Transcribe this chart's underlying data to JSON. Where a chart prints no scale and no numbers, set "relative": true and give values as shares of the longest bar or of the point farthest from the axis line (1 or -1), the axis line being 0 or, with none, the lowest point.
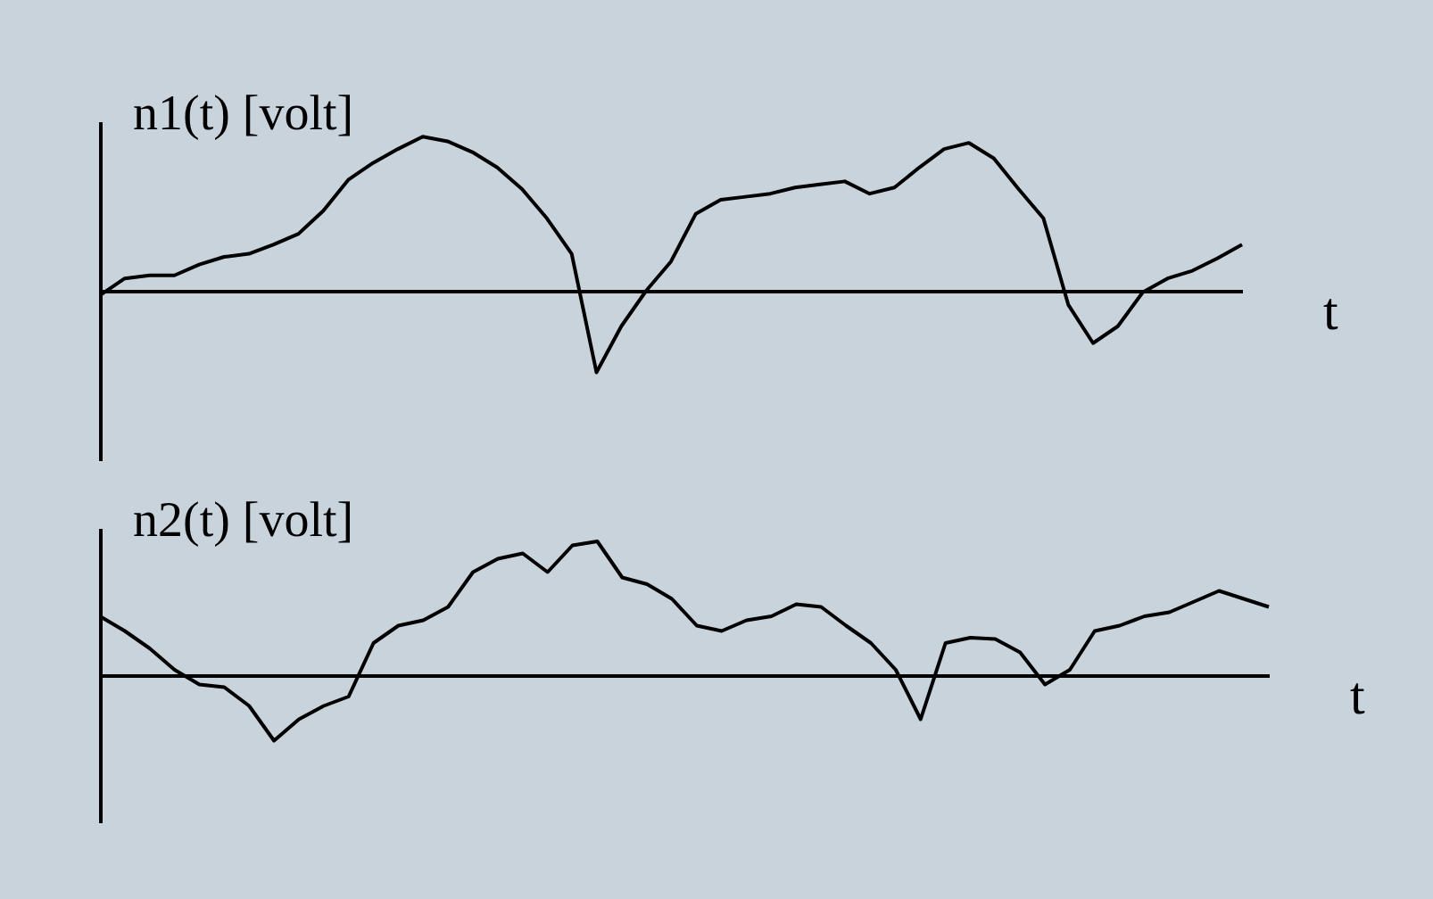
{
  "chart_data": [
    {
      "type": "line",
      "relative": true,
      "ylabel": "n1(t) [volt]",
      "xlabel": "t",
      "color": "#000000",
      "categories": [
        null,
        null,
        null,
        null,
        null,
        null,
        null,
        null,
        null,
        null,
        null,
        null,
        null,
        null,
        null,
        null,
        null,
        null,
        null,
        null,
        null,
        null,
        null,
        null,
        null,
        null,
        null,
        null,
        null,
        null,
        null,
        null,
        null,
        null,
        null,
        null,
        null,
        null,
        null,
        null,
        null,
        null,
        null,
        null,
        null,
        null,
        null
      ],
      "values": [
        -0.03,
        0.08,
        0.1,
        0.1,
        0.17,
        0.22,
        0.24,
        0.3,
        0.37,
        0.52,
        0.72,
        0.83,
        0.92,
        1.0,
        0.97,
        0.9,
        0.8,
        0.66,
        0.47,
        0.24,
        -0.53,
        -0.23,
        0,
        0.19,
        0.5,
        0.59,
        0.61,
        0.63,
        0.67,
        0.69,
        0.71,
        0.63,
        0.67,
        0.8,
        0.92,
        0.96,
        0.86,
        0.66,
        0.47,
        -0.09,
        -0.34,
        -0.23,
        -0.01,
        0.08,
        0.13,
        0.21,
        0.3
      ]
    },
    {
      "type": "line",
      "relative": true,
      "ylabel": "n2(t) [volt]",
      "xlabel": "t",
      "color": "#000000",
      "categories": [
        null,
        null,
        null,
        null,
        null,
        null,
        null,
        null,
        null,
        null,
        null,
        null,
        null,
        null,
        null,
        null,
        null,
        null,
        null,
        null,
        null,
        null,
        null,
        null,
        null,
        null,
        null,
        null,
        null,
        null,
        null,
        null,
        null,
        null,
        null,
        null,
        null,
        null,
        null,
        null,
        null,
        null,
        null,
        null,
        null,
        null,
        null,
        null
      ],
      "values": [
        0.44,
        0.33,
        0.2,
        0.04,
        -0.07,
        -0.09,
        -0.23,
        -0.49,
        -0.33,
        -0.23,
        -0.16,
        0.24,
        0.37,
        0.41,
        0.51,
        0.77,
        0.87,
        0.91,
        0.77,
        0.97,
        1.0,
        0.73,
        0.68,
        0.57,
        0.37,
        0.33,
        0.41,
        0.44,
        0.53,
        0.51,
        0.37,
        0.24,
        0.04,
        -0.33,
        0.24,
        0.28,
        0.27,
        0.17,
        -0.07,
        0.04,
        0.33,
        0.37,
        0.44,
        0.47,
        0.55,
        0.63,
        0.57,
        0.51
      ]
    }
  ]
}
